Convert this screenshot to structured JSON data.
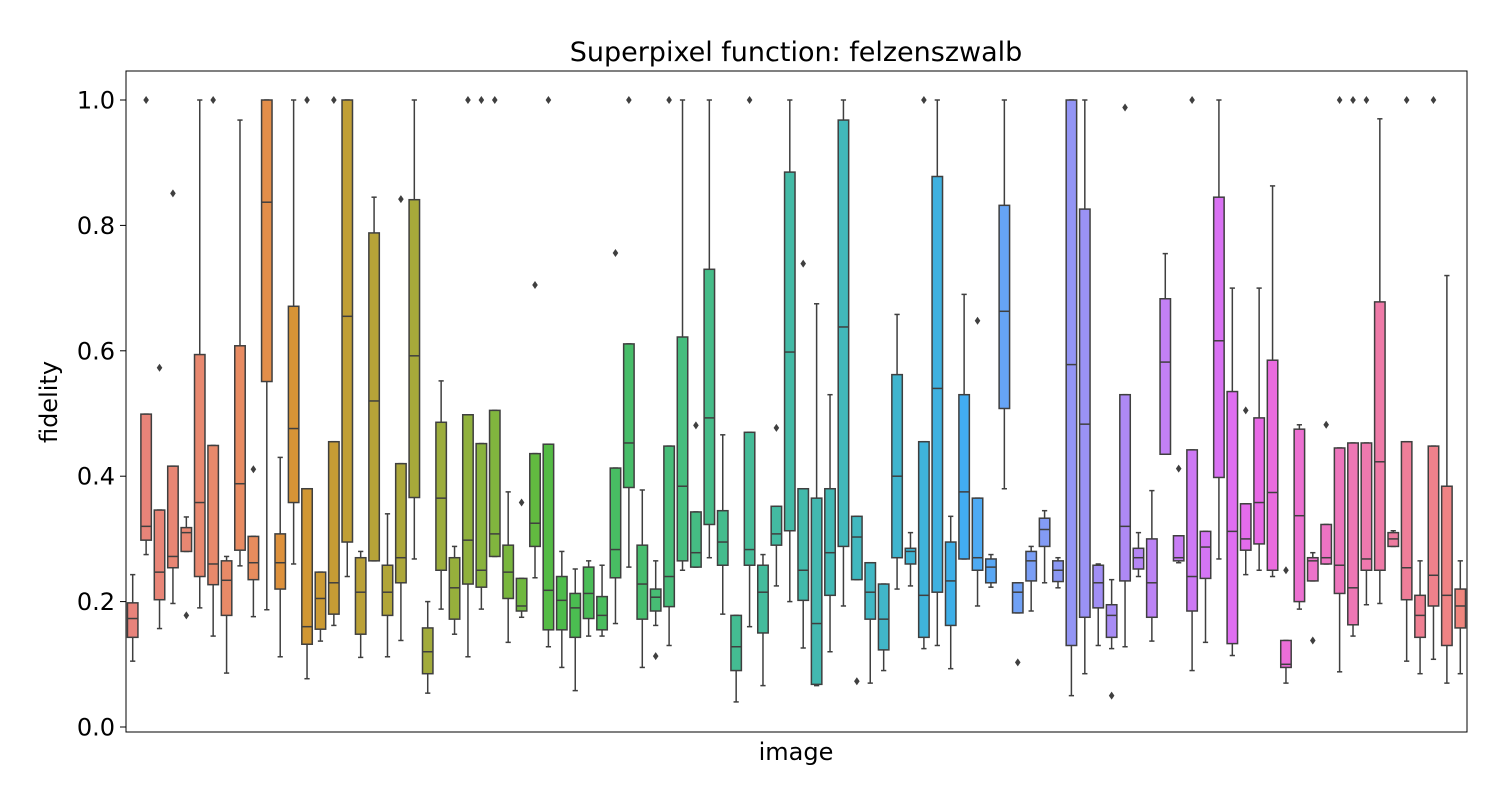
{
  "chart_data": {
    "type": "box",
    "title": "Superpixel function: felzenszwalb",
    "xlabel": "image",
    "ylabel": "fidelity",
    "ylim": [
      0.0,
      1.0
    ],
    "yticks": [
      "0.0",
      "0.2",
      "0.4",
      "0.6",
      "0.8",
      "1.0"
    ],
    "grid": false,
    "legend": "none",
    "series": [
      {
        "color": "#e8837b",
        "min": 0.105,
        "q1": 0.143,
        "median": 0.173,
        "q3": 0.198,
        "max": 0.243,
        "outliers": []
      },
      {
        "color": "#e88479",
        "min": 0.275,
        "q1": 0.298,
        "median": 0.32,
        "q3": 0.499,
        "max": 0.499,
        "outliers": [
          1.0
        ]
      },
      {
        "color": "#e88577",
        "min": 0.157,
        "q1": 0.203,
        "median": 0.247,
        "q3": 0.346,
        "max": 0.346,
        "outliers": [
          0.573
        ]
      },
      {
        "color": "#e88674",
        "min": 0.197,
        "q1": 0.254,
        "median": 0.272,
        "q3": 0.416,
        "max": 0.416,
        "outliers": [
          0.851
        ]
      },
      {
        "color": "#e88772",
        "min": 0.28,
        "q1": 0.28,
        "median": 0.31,
        "q3": 0.318,
        "max": 0.335,
        "outliers": [
          0.178
        ]
      },
      {
        "color": "#e8886f",
        "min": 0.19,
        "q1": 0.24,
        "median": 0.358,
        "q3": 0.594,
        "max": 1.0,
        "outliers": []
      },
      {
        "color": "#e8896b",
        "min": 0.145,
        "q1": 0.227,
        "median": 0.26,
        "q3": 0.449,
        "max": 0.449,
        "outliers": [
          1.0
        ]
      },
      {
        "color": "#e88a67",
        "min": 0.086,
        "q1": 0.178,
        "median": 0.234,
        "q3": 0.265,
        "max": 0.272,
        "outliers": []
      },
      {
        "color": "#e88b62",
        "min": 0.257,
        "q1": 0.282,
        "median": 0.388,
        "q3": 0.608,
        "max": 0.968,
        "outliers": []
      },
      {
        "color": "#e78c5d",
        "min": 0.176,
        "q1": 0.235,
        "median": 0.262,
        "q3": 0.304,
        "max": 0.304,
        "outliers": [
          0.411
        ]
      },
      {
        "color": "#e38e4a",
        "min": 0.187,
        "q1": 0.551,
        "median": 0.837,
        "q3": 1.0,
        "max": 1.0,
        "outliers": []
      },
      {
        "color": "#dd913c",
        "min": 0.112,
        "q1": 0.22,
        "median": 0.262,
        "q3": 0.308,
        "max": 0.43,
        "outliers": []
      },
      {
        "color": "#d79436",
        "min": 0.26,
        "q1": 0.358,
        "median": 0.476,
        "q3": 0.671,
        "max": 1.0,
        "outliers": []
      },
      {
        "color": "#d19733",
        "min": 0.077,
        "q1": 0.132,
        "median": 0.16,
        "q3": 0.38,
        "max": 0.38,
        "outliers": [
          1.0
        ]
      },
      {
        "color": "#cb9a34",
        "min": 0.137,
        "q1": 0.156,
        "median": 0.205,
        "q3": 0.247,
        "max": 0.247,
        "outliers": []
      },
      {
        "color": "#c69c35",
        "min": 0.162,
        "q1": 0.18,
        "median": 0.23,
        "q3": 0.455,
        "max": 0.455,
        "outliers": [
          1.0
        ]
      },
      {
        "color": "#c09f36",
        "min": 0.24,
        "q1": 0.295,
        "median": 0.655,
        "q3": 1.0,
        "max": 1.0,
        "outliers": []
      },
      {
        "color": "#bba137",
        "min": 0.111,
        "q1": 0.148,
        "median": 0.215,
        "q3": 0.27,
        "max": 0.28,
        "outliers": []
      },
      {
        "color": "#b6a338",
        "min": 0.265,
        "q1": 0.265,
        "median": 0.52,
        "q3": 0.788,
        "max": 0.845,
        "outliers": []
      },
      {
        "color": "#b1a539",
        "min": 0.112,
        "q1": 0.178,
        "median": 0.215,
        "q3": 0.258,
        "max": 0.34,
        "outliers": []
      },
      {
        "color": "#aca73a",
        "min": 0.138,
        "q1": 0.23,
        "median": 0.27,
        "q3": 0.42,
        "max": 0.42,
        "outliers": [
          0.842
        ]
      },
      {
        "color": "#a7a93a",
        "min": 0.268,
        "q1": 0.366,
        "median": 0.592,
        "q3": 0.841,
        "max": 1.0,
        "outliers": []
      },
      {
        "color": "#a2ab3b",
        "min": 0.054,
        "q1": 0.085,
        "median": 0.12,
        "q3": 0.158,
        "max": 0.2,
        "outliers": []
      },
      {
        "color": "#9cad3c",
        "min": 0.188,
        "q1": 0.25,
        "median": 0.365,
        "q3": 0.486,
        "max": 0.552,
        "outliers": []
      },
      {
        "color": "#96af3c",
        "min": 0.148,
        "q1": 0.172,
        "median": 0.222,
        "q3": 0.27,
        "max": 0.288,
        "outliers": []
      },
      {
        "color": "#90b13d",
        "min": 0.112,
        "q1": 0.228,
        "median": 0.298,
        "q3": 0.498,
        "max": 0.498,
        "outliers": [
          1.0
        ]
      },
      {
        "color": "#89b33d",
        "min": 0.188,
        "q1": 0.223,
        "median": 0.25,
        "q3": 0.452,
        "max": 0.452,
        "outliers": [
          1.0
        ]
      },
      {
        "color": "#81b53e",
        "min": 0.272,
        "q1": 0.272,
        "median": 0.308,
        "q3": 0.505,
        "max": 0.505,
        "outliers": [
          1.0
        ]
      },
      {
        "color": "#79b63e",
        "min": 0.135,
        "q1": 0.205,
        "median": 0.247,
        "q3": 0.29,
        "max": 0.375,
        "outliers": []
      },
      {
        "color": "#6fb83f",
        "min": 0.175,
        "q1": 0.185,
        "median": 0.193,
        "q3": 0.237,
        "max": 0.237,
        "outliers": [
          0.358
        ]
      },
      {
        "color": "#62ba40",
        "min": 0.238,
        "q1": 0.288,
        "median": 0.325,
        "q3": 0.436,
        "max": 0.436,
        "outliers": [
          0.705
        ]
      },
      {
        "color": "#54bb45",
        "min": 0.128,
        "q1": 0.155,
        "median": 0.218,
        "q3": 0.451,
        "max": 0.451,
        "outliers": [
          1.0
        ]
      },
      {
        "color": "#4dbc4b",
        "min": 0.095,
        "q1": 0.155,
        "median": 0.202,
        "q3": 0.24,
        "max": 0.28,
        "outliers": []
      },
      {
        "color": "#4bbd51",
        "min": 0.058,
        "q1": 0.143,
        "median": 0.19,
        "q3": 0.213,
        "max": 0.252,
        "outliers": []
      },
      {
        "color": "#4abd57",
        "min": 0.145,
        "q1": 0.173,
        "median": 0.213,
        "q3": 0.255,
        "max": 0.265,
        "outliers": []
      },
      {
        "color": "#49bd5d",
        "min": 0.145,
        "q1": 0.155,
        "median": 0.178,
        "q3": 0.208,
        "max": 0.258,
        "outliers": []
      },
      {
        "color": "#48bd63",
        "min": 0.165,
        "q1": 0.238,
        "median": 0.283,
        "q3": 0.413,
        "max": 0.413,
        "outliers": [
          0.756
        ]
      },
      {
        "color": "#47bd69",
        "min": 0.255,
        "q1": 0.382,
        "median": 0.453,
        "q3": 0.611,
        "max": 0.611,
        "outliers": [
          1.0
        ]
      },
      {
        "color": "#47bd6e",
        "min": 0.095,
        "q1": 0.172,
        "median": 0.228,
        "q3": 0.29,
        "max": 0.378,
        "outliers": []
      },
      {
        "color": "#47bd74",
        "min": 0.162,
        "q1": 0.185,
        "median": 0.207,
        "q3": 0.22,
        "max": 0.265,
        "outliers": [
          0.113
        ]
      },
      {
        "color": "#46bd79",
        "min": 0.13,
        "q1": 0.192,
        "median": 0.24,
        "q3": 0.448,
        "max": 0.448,
        "outliers": [
          1.0
        ]
      },
      {
        "color": "#46bd7e",
        "min": 0.25,
        "q1": 0.265,
        "median": 0.384,
        "q3": 0.622,
        "max": 1.0,
        "outliers": []
      },
      {
        "color": "#45bc83",
        "min": 0.255,
        "q1": 0.255,
        "median": 0.278,
        "q3": 0.343,
        "max": 0.343,
        "outliers": [
          0.481
        ]
      },
      {
        "color": "#45bc88",
        "min": 0.27,
        "q1": 0.323,
        "median": 0.493,
        "q3": 0.73,
        "max": 1.0,
        "outliers": []
      },
      {
        "color": "#44bc8d",
        "min": 0.18,
        "q1": 0.258,
        "median": 0.295,
        "q3": 0.345,
        "max": 0.466,
        "outliers": []
      },
      {
        "color": "#44bc92",
        "min": 0.04,
        "q1": 0.09,
        "median": 0.128,
        "q3": 0.178,
        "max": 0.178,
        "outliers": []
      },
      {
        "color": "#44bb97",
        "min": 0.16,
        "q1": 0.258,
        "median": 0.283,
        "q3": 0.47,
        "max": 0.47,
        "outliers": [
          1.0
        ]
      },
      {
        "color": "#43bb9c",
        "min": 0.066,
        "q1": 0.15,
        "median": 0.215,
        "q3": 0.258,
        "max": 0.275,
        "outliers": []
      },
      {
        "color": "#43bba1",
        "min": 0.225,
        "q1": 0.29,
        "median": 0.308,
        "q3": 0.352,
        "max": 0.352,
        "outliers": [
          0.477
        ]
      },
      {
        "color": "#43baa6",
        "min": 0.2,
        "q1": 0.313,
        "median": 0.598,
        "q3": 0.885,
        "max": 1.0,
        "outliers": []
      },
      {
        "color": "#42baab",
        "min": 0.126,
        "q1": 0.202,
        "median": 0.25,
        "q3": 0.38,
        "max": 0.38,
        "outliers": [
          0.739
        ]
      },
      {
        "color": "#42b9b0",
        "min": 0.066,
        "q1": 0.068,
        "median": 0.165,
        "q3": 0.365,
        "max": 0.675,
        "outliers": []
      },
      {
        "color": "#42b9b5",
        "min": 0.12,
        "q1": 0.21,
        "median": 0.278,
        "q3": 0.38,
        "max": 0.53,
        "outliers": []
      },
      {
        "color": "#42b8ba",
        "min": 0.193,
        "q1": 0.288,
        "median": 0.638,
        "q3": 0.968,
        "max": 1.0,
        "outliers": []
      },
      {
        "color": "#41b8bf",
        "min": 0.235,
        "q1": 0.235,
        "median": 0.303,
        "q3": 0.336,
        "max": 0.336,
        "outliers": [
          0.073
        ]
      },
      {
        "color": "#41b7c4",
        "min": 0.07,
        "q1": 0.172,
        "median": 0.215,
        "q3": 0.262,
        "max": 0.262,
        "outliers": []
      },
      {
        "color": "#41b6c9",
        "min": 0.09,
        "q1": 0.123,
        "median": 0.172,
        "q3": 0.228,
        "max": 0.228,
        "outliers": []
      },
      {
        "color": "#40b5ce",
        "min": 0.22,
        "q1": 0.27,
        "median": 0.4,
        "q3": 0.562,
        "max": 0.658,
        "outliers": []
      },
      {
        "color": "#40b4d4",
        "min": 0.225,
        "q1": 0.26,
        "median": 0.28,
        "q3": 0.285,
        "max": 0.31,
        "outliers": []
      },
      {
        "color": "#3fb3da",
        "min": 0.125,
        "q1": 0.143,
        "median": 0.21,
        "q3": 0.455,
        "max": 0.455,
        "outliers": [
          1.0
        ]
      },
      {
        "color": "#3fb1e0",
        "min": 0.13,
        "q1": 0.215,
        "median": 0.54,
        "q3": 0.878,
        "max": 1.0,
        "outliers": []
      },
      {
        "color": "#3eafe8",
        "min": 0.093,
        "q1": 0.162,
        "median": 0.233,
        "q3": 0.295,
        "max": 0.336,
        "outliers": []
      },
      {
        "color": "#42acf1",
        "min": 0.268,
        "q1": 0.268,
        "median": 0.375,
        "q3": 0.53,
        "max": 0.69,
        "outliers": []
      },
      {
        "color": "#4eaaf3",
        "min": 0.193,
        "q1": 0.25,
        "median": 0.27,
        "q3": 0.365,
        "max": 0.365,
        "outliers": [
          0.648
        ]
      },
      {
        "color": "#59a7f4",
        "min": 0.223,
        "q1": 0.23,
        "median": 0.255,
        "q3": 0.268,
        "max": 0.275,
        "outliers": []
      },
      {
        "color": "#66a4f5",
        "min": 0.38,
        "q1": 0.508,
        "median": 0.663,
        "q3": 0.832,
        "max": 1.0,
        "outliers": []
      },
      {
        "color": "#70a1f5",
        "min": 0.182,
        "q1": 0.182,
        "median": 0.215,
        "q3": 0.23,
        "max": 0.23,
        "outliers": [
          0.103
        ]
      },
      {
        "color": "#7a9ef5",
        "min": 0.185,
        "q1": 0.233,
        "median": 0.265,
        "q3": 0.28,
        "max": 0.288,
        "outliers": []
      },
      {
        "color": "#839bf5",
        "min": 0.23,
        "q1": 0.288,
        "median": 0.315,
        "q3": 0.333,
        "max": 0.345,
        "outliers": []
      },
      {
        "color": "#8b98f5",
        "min": 0.222,
        "q1": 0.232,
        "median": 0.25,
        "q3": 0.265,
        "max": 0.27,
        "outliers": []
      },
      {
        "color": "#9395f5",
        "min": 0.05,
        "q1": 0.13,
        "median": 0.578,
        "q3": 1.0,
        "max": 1.0,
        "outliers": []
      },
      {
        "color": "#9a92f5",
        "min": 0.085,
        "q1": 0.175,
        "median": 0.483,
        "q3": 0.826,
        "max": 1.0,
        "outliers": []
      },
      {
        "color": "#a18ff5",
        "min": 0.13,
        "q1": 0.19,
        "median": 0.23,
        "q3": 0.258,
        "max": 0.26,
        "outliers": []
      },
      {
        "color": "#a88cf5",
        "min": 0.125,
        "q1": 0.143,
        "median": 0.178,
        "q3": 0.195,
        "max": 0.235,
        "outliers": [
          0.05
        ]
      },
      {
        "color": "#ae89f5",
        "min": 0.128,
        "q1": 0.233,
        "median": 0.32,
        "q3": 0.53,
        "max": 0.53,
        "outliers": [
          0.988
        ]
      },
      {
        "color": "#b586f5",
        "min": 0.24,
        "q1": 0.252,
        "median": 0.27,
        "q3": 0.285,
        "max": 0.31,
        "outliers": []
      },
      {
        "color": "#bc83f5",
        "min": 0.137,
        "q1": 0.175,
        "median": 0.23,
        "q3": 0.3,
        "max": 0.377,
        "outliers": []
      },
      {
        "color": "#c280f5",
        "min": 0.435,
        "q1": 0.435,
        "median": 0.582,
        "q3": 0.683,
        "max": 0.755,
        "outliers": []
      },
      {
        "color": "#c87df5",
        "min": 0.262,
        "q1": 0.265,
        "median": 0.27,
        "q3": 0.305,
        "max": 0.305,
        "outliers": [
          0.412
        ]
      },
      {
        "color": "#cd79f5",
        "min": 0.09,
        "q1": 0.185,
        "median": 0.24,
        "q3": 0.442,
        "max": 0.442,
        "outliers": [
          1.0
        ]
      },
      {
        "color": "#d375f4",
        "min": 0.135,
        "q1": 0.237,
        "median": 0.287,
        "q3": 0.312,
        "max": 0.312,
        "outliers": []
      },
      {
        "color": "#d972f3",
        "min": 0.268,
        "q1": 0.398,
        "median": 0.616,
        "q3": 0.845,
        "max": 1.0,
        "outliers": []
      },
      {
        "color": "#df6ef1",
        "min": 0.114,
        "q1": 0.133,
        "median": 0.312,
        "q3": 0.535,
        "max": 0.7,
        "outliers": []
      },
      {
        "color": "#e46cec",
        "min": 0.243,
        "q1": 0.282,
        "median": 0.3,
        "q3": 0.356,
        "max": 0.356,
        "outliers": [
          0.505
        ]
      },
      {
        "color": "#e86ae6",
        "min": 0.25,
        "q1": 0.292,
        "median": 0.358,
        "q3": 0.493,
        "max": 0.7,
        "outliers": []
      },
      {
        "color": "#ea6cdf",
        "min": 0.24,
        "q1": 0.25,
        "median": 0.374,
        "q3": 0.585,
        "max": 0.863,
        "outliers": []
      },
      {
        "color": "#eb6ed8",
        "min": 0.07,
        "q1": 0.095,
        "median": 0.1,
        "q3": 0.138,
        "max": 0.138,
        "outliers": [
          0.25
        ]
      },
      {
        "color": "#ec70d1",
        "min": 0.188,
        "q1": 0.2,
        "median": 0.337,
        "q3": 0.475,
        "max": 0.482,
        "outliers": []
      },
      {
        "color": "#ec72ca",
        "min": 0.233,
        "q1": 0.233,
        "median": 0.265,
        "q3": 0.27,
        "max": 0.278,
        "outliers": [
          0.138
        ]
      },
      {
        "color": "#ed73c3",
        "min": 0.26,
        "q1": 0.26,
        "median": 0.27,
        "q3": 0.323,
        "max": 0.323,
        "outliers": [
          0.482
        ]
      },
      {
        "color": "#ed75bc",
        "min": 0.088,
        "q1": 0.213,
        "median": 0.258,
        "q3": 0.445,
        "max": 0.445,
        "outliers": [
          1.0
        ]
      },
      {
        "color": "#ee77b5",
        "min": 0.145,
        "q1": 0.163,
        "median": 0.222,
        "q3": 0.453,
        "max": 0.453,
        "outliers": [
          1.0
        ]
      },
      {
        "color": "#ee79ae",
        "min": 0.195,
        "q1": 0.25,
        "median": 0.268,
        "q3": 0.453,
        "max": 0.453,
        "outliers": [
          1.0
        ]
      },
      {
        "color": "#ee7aa7",
        "min": 0.197,
        "q1": 0.25,
        "median": 0.423,
        "q3": 0.678,
        "max": 0.97,
        "outliers": []
      },
      {
        "color": "#ee7ca0",
        "min": 0.288,
        "q1": 0.288,
        "median": 0.3,
        "q3": 0.31,
        "max": 0.313,
        "outliers": []
      },
      {
        "color": "#ef7e99",
        "min": 0.105,
        "q1": 0.203,
        "median": 0.254,
        "q3": 0.455,
        "max": 0.455,
        "outliers": [
          1.0
        ]
      },
      {
        "color": "#ef7f92",
        "min": 0.085,
        "q1": 0.143,
        "median": 0.178,
        "q3": 0.21,
        "max": 0.265,
        "outliers": []
      },
      {
        "color": "#ef818b",
        "min": 0.108,
        "q1": 0.193,
        "median": 0.242,
        "q3": 0.448,
        "max": 0.448,
        "outliers": [
          1.0
        ]
      },
      {
        "color": "#ef8384",
        "min": 0.07,
        "q1": 0.13,
        "median": 0.21,
        "q3": 0.384,
        "max": 0.72,
        "outliers": []
      },
      {
        "color": "#ef857d",
        "min": 0.085,
        "q1": 0.158,
        "median": 0.193,
        "q3": 0.22,
        "max": 0.265,
        "outliers": []
      }
    ]
  }
}
